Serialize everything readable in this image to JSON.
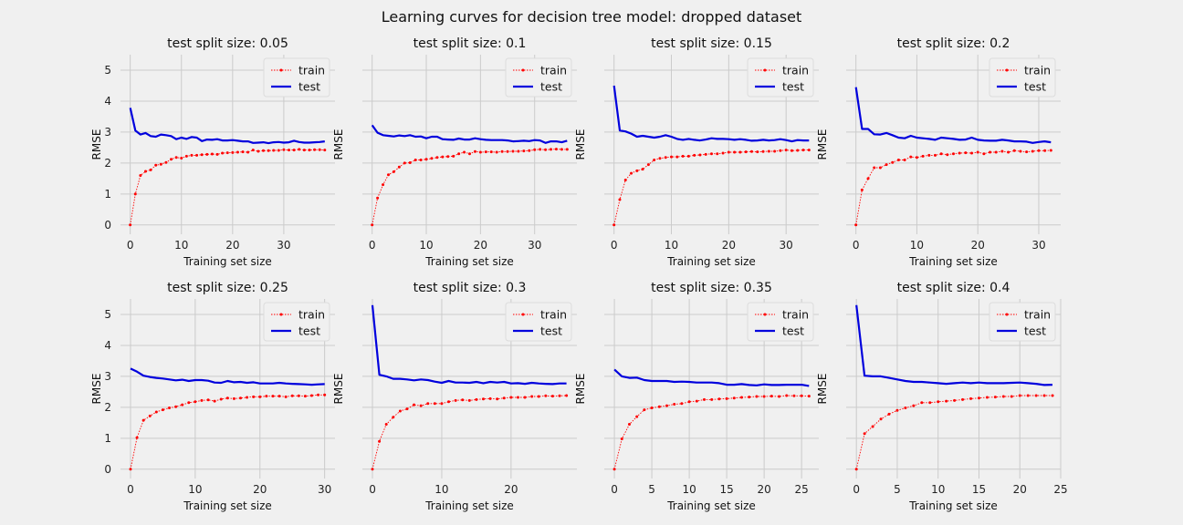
{
  "suptitle": "Learning curves for decision tree model: dropped dataset",
  "chart_data": [
    {
      "type": "line",
      "title": "test split size: 0.05",
      "xlabel": "Training set size",
      "ylabel": "RMSE",
      "xlim": [
        -1.9,
        40
      ],
      "ylim": [
        -0.3,
        5.5
      ],
      "xticks": [
        0,
        10,
        20,
        30
      ],
      "yticks": [
        0,
        1,
        2,
        3,
        4,
        5
      ],
      "legend": [
        "train",
        "test"
      ],
      "legend_position": "top-right",
      "grid": true,
      "series": [
        {
          "name": "train",
          "values": [
            0,
            1.0,
            1.6,
            1.73,
            1.78,
            1.93,
            1.96,
            2.02,
            2.12,
            2.18,
            2.16,
            2.22,
            2.25,
            2.25,
            2.27,
            2.28,
            2.29,
            2.28,
            2.32,
            2.33,
            2.34,
            2.35,
            2.36,
            2.35,
            2.42,
            2.38,
            2.4,
            2.4,
            2.41,
            2.41,
            2.43,
            2.42,
            2.42,
            2.44,
            2.42,
            2.42,
            2.43,
            2.43,
            2.42
          ]
        },
        {
          "name": "test",
          "values": [
            3.78,
            3.05,
            2.92,
            2.97,
            2.87,
            2.85,
            2.92,
            2.9,
            2.87,
            2.77,
            2.82,
            2.78,
            2.84,
            2.82,
            2.71,
            2.76,
            2.75,
            2.77,
            2.73,
            2.73,
            2.74,
            2.72,
            2.7,
            2.7,
            2.65,
            2.66,
            2.67,
            2.64,
            2.67,
            2.68,
            2.66,
            2.67,
            2.72,
            2.68,
            2.66,
            2.66,
            2.67,
            2.68,
            2.7
          ]
        }
      ]
    },
    {
      "type": "line",
      "title": "test split size: 0.1",
      "xlabel": "Training set size",
      "ylabel": "RMSE",
      "xlim": [
        -1.8,
        37.8
      ],
      "ylim": [
        -0.3,
        5.5
      ],
      "xticks": [
        0,
        10,
        20,
        30
      ],
      "yticks": [
        0,
        1,
        2,
        3,
        4,
        5
      ],
      "legend": [
        "train",
        "test"
      ],
      "legend_position": "top-right",
      "grid": true,
      "series": [
        {
          "name": "train",
          "values": [
            0,
            0.87,
            1.3,
            1.62,
            1.72,
            1.87,
            2.0,
            2.01,
            2.1,
            2.1,
            2.12,
            2.15,
            2.18,
            2.2,
            2.21,
            2.22,
            2.3,
            2.35,
            2.3,
            2.37,
            2.35,
            2.36,
            2.36,
            2.35,
            2.37,
            2.37,
            2.38,
            2.38,
            2.39,
            2.4,
            2.43,
            2.44,
            2.43,
            2.44,
            2.45,
            2.44,
            2.44
          ]
        },
        {
          "name": "test",
          "values": [
            3.22,
            2.98,
            2.9,
            2.88,
            2.86,
            2.89,
            2.87,
            2.9,
            2.85,
            2.86,
            2.8,
            2.85,
            2.85,
            2.77,
            2.76,
            2.75,
            2.79,
            2.76,
            2.76,
            2.8,
            2.77,
            2.75,
            2.74,
            2.74,
            2.74,
            2.73,
            2.7,
            2.71,
            2.72,
            2.71,
            2.74,
            2.73,
            2.65,
            2.7,
            2.7,
            2.67,
            2.72
          ]
        }
      ]
    },
    {
      "type": "line",
      "title": "test split size: 0.15",
      "xlabel": "Training set size",
      "ylabel": "RMSE",
      "xlim": [
        -1.7,
        35.7
      ],
      "ylim": [
        -0.3,
        5.5
      ],
      "xticks": [
        0,
        10,
        20,
        30
      ],
      "yticks": [
        0,
        1,
        2,
        3,
        4,
        5
      ],
      "legend": [
        "train",
        "test"
      ],
      "legend_position": "top-right",
      "grid": true,
      "series": [
        {
          "name": "train",
          "values": [
            0,
            0.82,
            1.45,
            1.67,
            1.75,
            1.8,
            1.95,
            2.1,
            2.15,
            2.18,
            2.2,
            2.2,
            2.22,
            2.22,
            2.25,
            2.26,
            2.28,
            2.3,
            2.3,
            2.32,
            2.35,
            2.35,
            2.35,
            2.36,
            2.37,
            2.36,
            2.37,
            2.38,
            2.38,
            2.4,
            2.42,
            2.4,
            2.41,
            2.42,
            2.42
          ]
        },
        {
          "name": "test",
          "values": [
            4.5,
            3.05,
            3.02,
            2.95,
            2.85,
            2.88,
            2.85,
            2.82,
            2.85,
            2.9,
            2.85,
            2.78,
            2.75,
            2.78,
            2.75,
            2.73,
            2.76,
            2.8,
            2.78,
            2.78,
            2.77,
            2.75,
            2.77,
            2.75,
            2.72,
            2.73,
            2.75,
            2.73,
            2.74,
            2.77,
            2.74,
            2.7,
            2.74,
            2.73,
            2.73
          ]
        }
      ]
    },
    {
      "type": "line",
      "title": "test split size: 0.2",
      "xlabel": "Training set size",
      "ylabel": "RMSE",
      "xlim": [
        -1.6,
        33.6
      ],
      "ylim": [
        -0.3,
        5.5
      ],
      "xticks": [
        0,
        10,
        20,
        30
      ],
      "yticks": [
        0,
        1,
        2,
        3,
        4,
        5
      ],
      "legend": [
        "train",
        "test"
      ],
      "legend_position": "top-right",
      "grid": true,
      "series": [
        {
          "name": "train",
          "values": [
            0,
            1.13,
            1.5,
            1.85,
            1.85,
            1.95,
            2.02,
            2.1,
            2.1,
            2.2,
            2.18,
            2.22,
            2.25,
            2.25,
            2.3,
            2.27,
            2.3,
            2.32,
            2.33,
            2.32,
            2.35,
            2.3,
            2.35,
            2.35,
            2.38,
            2.35,
            2.4,
            2.38,
            2.36,
            2.38,
            2.4,
            2.4,
            2.41
          ]
        },
        {
          "name": "test",
          "values": [
            4.45,
            3.1,
            3.1,
            2.93,
            2.92,
            2.97,
            2.9,
            2.82,
            2.8,
            2.88,
            2.82,
            2.8,
            2.78,
            2.75,
            2.82,
            2.8,
            2.78,
            2.75,
            2.76,
            2.82,
            2.75,
            2.73,
            2.72,
            2.72,
            2.75,
            2.73,
            2.7,
            2.7,
            2.69,
            2.65,
            2.68,
            2.7,
            2.67
          ]
        }
      ]
    },
    {
      "type": "line",
      "title": "test split size: 0.25",
      "xlabel": "Training set size",
      "ylabel": "RMSE",
      "xlim": [
        -1.55,
        31.6
      ],
      "ylim": [
        -0.3,
        5.5
      ],
      "xticks": [
        0,
        10,
        20,
        30
      ],
      "yticks": [
        0,
        1,
        2,
        3,
        4,
        5
      ],
      "legend": [
        "train",
        "test"
      ],
      "legend_position": "top-right",
      "grid": true,
      "series": [
        {
          "name": "train",
          "values": [
            0,
            1.02,
            1.58,
            1.72,
            1.85,
            1.92,
            1.98,
            2.02,
            2.08,
            2.15,
            2.18,
            2.22,
            2.24,
            2.2,
            2.26,
            2.3,
            2.28,
            2.3,
            2.32,
            2.34,
            2.34,
            2.36,
            2.36,
            2.36,
            2.34,
            2.37,
            2.37,
            2.36,
            2.38,
            2.4,
            2.4
          ]
        },
        {
          "name": "test",
          "values": [
            3.25,
            3.15,
            3.02,
            2.98,
            2.95,
            2.93,
            2.9,
            2.87,
            2.89,
            2.85,
            2.88,
            2.88,
            2.86,
            2.8,
            2.79,
            2.85,
            2.81,
            2.82,
            2.79,
            2.81,
            2.77,
            2.77,
            2.77,
            2.79,
            2.77,
            2.76,
            2.75,
            2.74,
            2.73,
            2.74,
            2.75
          ]
        }
      ]
    },
    {
      "type": "line",
      "title": "test split size: 0.3",
      "xlabel": "Training set size",
      "ylabel": "RMSE",
      "xlim": [
        -1.45,
        29.5
      ],
      "ylim": [
        -0.3,
        5.5
      ],
      "xticks": [
        0,
        10,
        20
      ],
      "yticks": [
        0,
        1,
        2,
        3,
        4,
        5
      ],
      "legend": [
        "train",
        "test"
      ],
      "legend_position": "top-right",
      "grid": true,
      "series": [
        {
          "name": "train",
          "values": [
            0,
            0.9,
            1.45,
            1.68,
            1.88,
            1.95,
            2.08,
            2.05,
            2.12,
            2.12,
            2.12,
            2.18,
            2.22,
            2.24,
            2.22,
            2.25,
            2.27,
            2.28,
            2.27,
            2.3,
            2.32,
            2.32,
            2.32,
            2.35,
            2.35,
            2.37,
            2.36,
            2.37,
            2.38
          ]
        },
        {
          "name": "test",
          "values": [
            5.3,
            3.05,
            3.0,
            2.92,
            2.92,
            2.9,
            2.87,
            2.9,
            2.88,
            2.83,
            2.79,
            2.85,
            2.8,
            2.8,
            2.79,
            2.82,
            2.78,
            2.82,
            2.8,
            2.82,
            2.77,
            2.78,
            2.76,
            2.79,
            2.77,
            2.76,
            2.75,
            2.77,
            2.77
          ]
        }
      ]
    },
    {
      "type": "line",
      "title": "test split size: 0.35",
      "xlabel": "Training set size",
      "ylabel": "RMSE",
      "xlim": [
        -1.35,
        27.3
      ],
      "ylim": [
        -0.3,
        5.5
      ],
      "xticks": [
        0,
        5,
        10,
        15,
        20,
        25
      ],
      "yticks": [
        0,
        1,
        2,
        3,
        4,
        5
      ],
      "legend": [
        "train",
        "test"
      ],
      "legend_position": "top-right",
      "grid": true,
      "series": [
        {
          "name": "train",
          "values": [
            0,
            0.98,
            1.45,
            1.7,
            1.92,
            1.98,
            2.02,
            2.05,
            2.1,
            2.12,
            2.18,
            2.2,
            2.25,
            2.25,
            2.27,
            2.28,
            2.3,
            2.32,
            2.33,
            2.35,
            2.35,
            2.36,
            2.35,
            2.38,
            2.37,
            2.37,
            2.36
          ]
        },
        {
          "name": "test",
          "values": [
            3.22,
            3.0,
            2.95,
            2.96,
            2.88,
            2.85,
            2.85,
            2.85,
            2.82,
            2.83,
            2.82,
            2.8,
            2.8,
            2.8,
            2.78,
            2.73,
            2.73,
            2.75,
            2.72,
            2.71,
            2.74,
            2.72,
            2.72,
            2.73,
            2.73,
            2.73,
            2.69
          ]
        }
      ]
    },
    {
      "type": "line",
      "title": "test split size: 0.4",
      "xlabel": "Training set size",
      "ylabel": "RMSE",
      "xlim": [
        -1.25,
        25
      ],
      "ylim": [
        -0.3,
        5.5
      ],
      "xticks": [
        0,
        5,
        10,
        15,
        20,
        25
      ],
      "yticks": [
        0,
        1,
        2,
        3,
        4,
        5
      ],
      "legend": [
        "train",
        "test"
      ],
      "legend_position": "top-right",
      "grid": true,
      "series": [
        {
          "name": "train",
          "values": [
            0,
            1.15,
            1.38,
            1.62,
            1.78,
            1.9,
            1.98,
            2.05,
            2.15,
            2.15,
            2.18,
            2.2,
            2.22,
            2.25,
            2.28,
            2.3,
            2.32,
            2.33,
            2.35,
            2.35,
            2.38,
            2.38,
            2.38,
            2.38,
            2.38
          ]
        },
        {
          "name": "test",
          "values": [
            5.3,
            3.02,
            3.0,
            3.0,
            2.95,
            2.9,
            2.85,
            2.82,
            2.82,
            2.8,
            2.78,
            2.76,
            2.78,
            2.8,
            2.78,
            2.8,
            2.78,
            2.78,
            2.78,
            2.79,
            2.8,
            2.78,
            2.76,
            2.72,
            2.73
          ]
        }
      ]
    }
  ]
}
